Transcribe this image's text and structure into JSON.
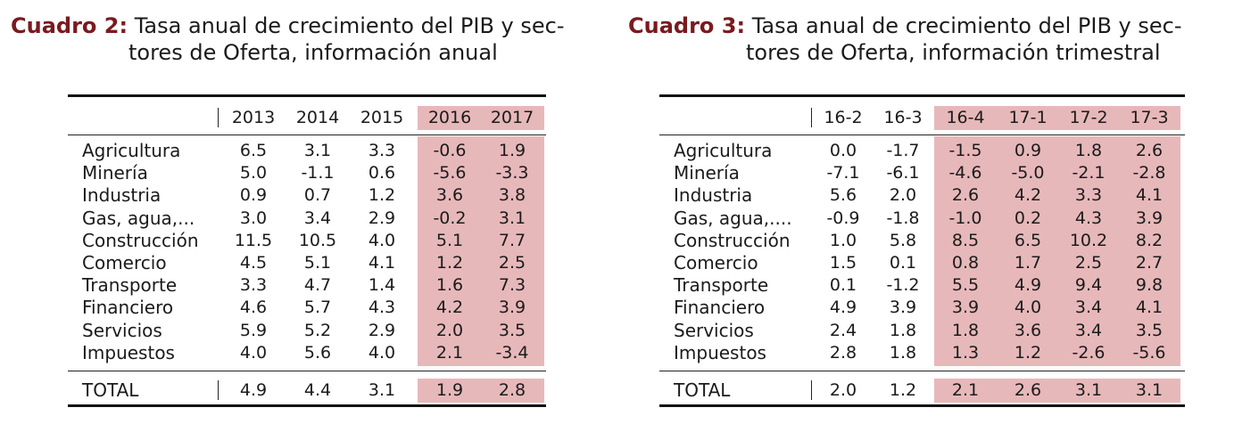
{
  "table1": {
    "label": "Cuadro 2:",
    "title_line1": "Tasa anual de crecimiento del PIB y sec-",
    "title_line2": "tores de Oferta, información anual",
    "columns": [
      "2013",
      "2014",
      "2015",
      "2016",
      "2017"
    ],
    "highlight_from": 3,
    "rows": [
      {
        "label": "Agricultura",
        "values": [
          "6.5",
          "3.1",
          "3.3",
          "-0.6",
          "1.9"
        ]
      },
      {
        "label": "Minería",
        "values": [
          "5.0",
          "-1.1",
          "0.6",
          "-5.6",
          "-3.3"
        ]
      },
      {
        "label": "Industria",
        "values": [
          "0.9",
          "0.7",
          "1.2",
          "3.6",
          "3.8"
        ]
      },
      {
        "label": "Gas, agua,...",
        "values": [
          "3.0",
          "3.4",
          "2.9",
          "-0.2",
          "3.1"
        ]
      },
      {
        "label": "Construcción",
        "values": [
          "11.5",
          "10.5",
          "4.0",
          "5.1",
          "7.7"
        ]
      },
      {
        "label": "Comercio",
        "values": [
          "4.5",
          "5.1",
          "4.1",
          "1.2",
          "2.5"
        ]
      },
      {
        "label": "Transporte",
        "values": [
          "3.3",
          "4.7",
          "1.4",
          "1.6",
          "7.3"
        ]
      },
      {
        "label": "Financiero",
        "values": [
          "4.6",
          "5.7",
          "4.3",
          "4.2",
          "3.9"
        ]
      },
      {
        "label": "Servicios",
        "values": [
          "5.9",
          "5.2",
          "2.9",
          "2.0",
          "3.5"
        ]
      },
      {
        "label": "Impuestos",
        "values": [
          "4.0",
          "5.6",
          "4.0",
          "2.1",
          "-3.4"
        ]
      }
    ],
    "total": {
      "label": "TOTAL",
      "values": [
        "4.9",
        "4.4",
        "3.1",
        "1.9",
        "2.8"
      ]
    }
  },
  "table2": {
    "label": "Cuadro 3:",
    "title_line1": "Tasa anual de crecimiento del PIB y sec-",
    "title_line2": "tores de Oferta, información trimestral",
    "columns": [
      "16-2",
      "16-3",
      "16-4",
      "17-1",
      "17-2",
      "17-3"
    ],
    "highlight_from": 2,
    "rows": [
      {
        "label": "Agricultura",
        "values": [
          "0.0",
          "-1.7",
          "-1.5",
          "0.9",
          "1.8",
          "2.6"
        ]
      },
      {
        "label": "Minería",
        "values": [
          "-7.1",
          "-6.1",
          "-4.6",
          "-5.0",
          "-2.1",
          "-2.8"
        ]
      },
      {
        "label": "Industria",
        "values": [
          "5.6",
          "2.0",
          "2.6",
          "4.2",
          "3.3",
          "4.1"
        ]
      },
      {
        "label": "Gas, agua,....",
        "values": [
          "-0.9",
          "-1.8",
          "-1.0",
          "0.2",
          "4.3",
          "3.9"
        ]
      },
      {
        "label": "Construcción",
        "values": [
          "1.0",
          "5.8",
          "8.5",
          "6.5",
          "10.2",
          "8.2"
        ]
      },
      {
        "label": "Comercio",
        "values": [
          "1.5",
          "0.1",
          "0.8",
          "1.7",
          "2.5",
          "2.7"
        ]
      },
      {
        "label": "Transporte",
        "values": [
          "0.1",
          "-1.2",
          "5.5",
          "4.9",
          "9.4",
          "9.8"
        ]
      },
      {
        "label": "Financiero",
        "values": [
          "4.9",
          "3.9",
          "3.9",
          "4.0",
          "3.4",
          "4.1"
        ]
      },
      {
        "label": "Servicios",
        "values": [
          "2.4",
          "1.8",
          "1.8",
          "3.6",
          "3.4",
          "3.5"
        ]
      },
      {
        "label": "Impuestos",
        "values": [
          "2.8",
          "1.8",
          "1.3",
          "1.2",
          "-2.6",
          "-5.6"
        ]
      }
    ],
    "total": {
      "label": "TOTAL",
      "values": [
        "2.0",
        "1.2",
        "2.1",
        "2.6",
        "3.1",
        "3.1"
      ]
    }
  },
  "colors": {
    "title_label": "#7a1a1f",
    "highlight": "#e7b8ba"
  }
}
